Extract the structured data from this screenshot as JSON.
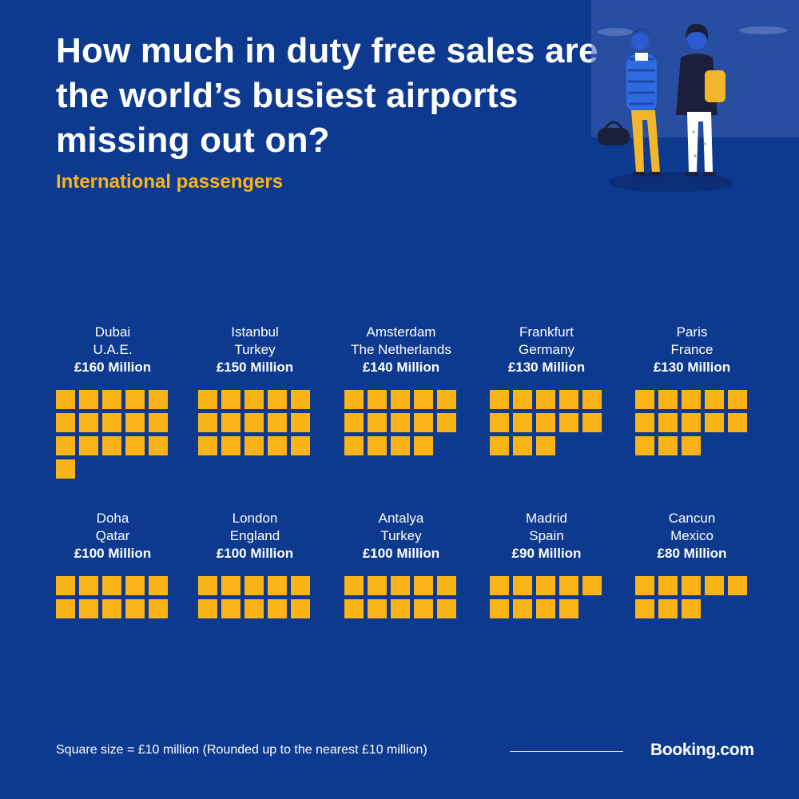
{
  "title": "How much in duty free sales are the world’s busiest airports missing out on?",
  "subtitle": "International passengers",
  "footer": {
    "note": "Square size = £10 million (Rounded up to the nearest £10 million)",
    "brand": "Booking.com"
  },
  "colors": {
    "background": "#0d3a8e",
    "accent": "#fbb417",
    "text": "#ffffff"
  },
  "chart_data": {
    "type": "waffle",
    "unit": "£10 million per square",
    "items": [
      {
        "city": "Dubai",
        "country": "U.A.E.",
        "amount": "£160 Million",
        "value": 160
      },
      {
        "city": "Istanbul",
        "country": "Turkey",
        "amount": "£150 Million",
        "value": 150
      },
      {
        "city": "Amsterdam",
        "country": "The Netherlands",
        "amount": "£140 Million",
        "value": 140
      },
      {
        "city": "Frankfurt",
        "country": "Germany",
        "amount": "£130 Million",
        "value": 130
      },
      {
        "city": "Paris",
        "country": "France",
        "amount": "£130 Million",
        "value": 130
      },
      {
        "city": "Doha",
        "country": "Qatar",
        "amount": "£100 Million",
        "value": 100
      },
      {
        "city": "London",
        "country": "England",
        "amount": "£100 Million",
        "value": 100
      },
      {
        "city": "Antalya",
        "country": "Turkey",
        "amount": "£100 Million",
        "value": 100
      },
      {
        "city": "Madrid",
        "country": "Spain",
        "amount": "£90 Million",
        "value": 90
      },
      {
        "city": "Cancun",
        "country": "Mexico",
        "amount": "£80 Million",
        "value": 80
      }
    ]
  }
}
